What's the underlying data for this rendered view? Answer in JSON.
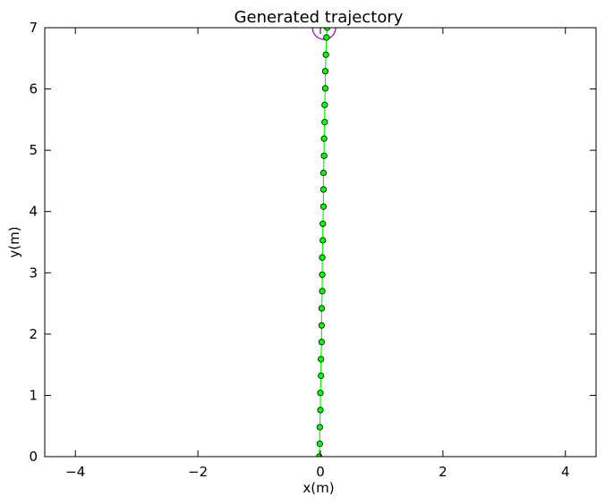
{
  "chart_data": {
    "type": "line",
    "title": "Generated trajectory",
    "xlabel": "x(m)",
    "ylabel": "y(m)",
    "xlim": [
      -4.5,
      4.5
    ],
    "ylim": [
      0,
      7
    ],
    "grid": false,
    "xticks": [
      -4,
      -2,
      0,
      2,
      4
    ],
    "xtick_labels": [
      "−4",
      "−2",
      "0",
      "2",
      "4"
    ],
    "yticks": [
      0,
      1,
      2,
      3,
      4,
      5,
      6,
      7
    ],
    "ytick_labels": [
      "0",
      "1",
      "2",
      "3",
      "4",
      "5",
      "6",
      "7"
    ],
    "series": [
      {
        "color": "#00ff00",
        "marker_edge": "#000000",
        "x": [
          -0.02,
          -0.01,
          -0.01,
          0.0,
          0.0,
          0.01,
          0.01,
          0.02,
          0.02,
          0.02,
          0.03,
          0.03,
          0.03,
          0.04,
          0.04,
          0.05,
          0.05,
          0.05,
          0.06,
          0.06,
          0.07,
          0.07,
          0.08,
          0.08,
          0.09,
          0.1,
          0.11
        ],
        "y": [
          0.0,
          0.21,
          0.48,
          0.76,
          1.04,
          1.32,
          1.59,
          1.87,
          2.14,
          2.42,
          2.7,
          2.97,
          3.25,
          3.53,
          3.8,
          4.08,
          4.36,
          4.63,
          4.91,
          5.19,
          5.46,
          5.74,
          6.01,
          6.29,
          6.56,
          6.84,
          7.0
        ]
      }
    ],
    "goal_marker": {
      "x": 0.06,
      "y": 7.0,
      "color": "#bf00bf"
    }
  }
}
